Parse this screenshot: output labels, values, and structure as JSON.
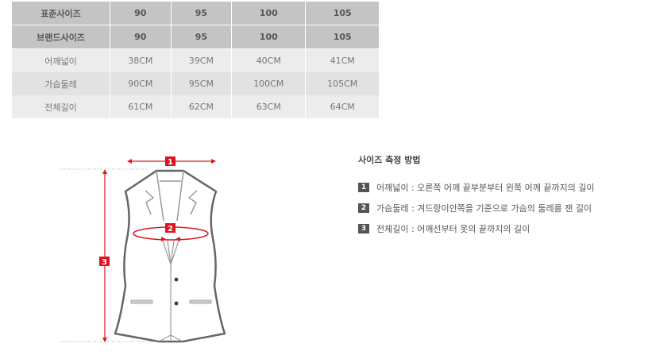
{
  "size_table": {
    "header_rows": [
      {
        "label": "표준사이즈",
        "values": [
          "90",
          "95",
          "100",
          "105"
        ]
      },
      {
        "label": "브랜드사이즈",
        "values": [
          "90",
          "95",
          "100",
          "105"
        ]
      }
    ],
    "rows": [
      {
        "label": "어깨넓이",
        "values": [
          "38CM",
          "39CM",
          "40CM",
          "41CM"
        ]
      },
      {
        "label": "가슴둘레",
        "values": [
          "90CM",
          "95CM",
          "100CM",
          "105CM"
        ]
      },
      {
        "label": "전체길이",
        "values": [
          "61CM",
          "62CM",
          "63CM",
          "64CM"
        ]
      }
    ]
  },
  "diagram": {
    "markers": [
      "1",
      "2",
      "3"
    ],
    "accent_color": "#e0141e"
  },
  "howto": {
    "title": "사이즈 측정 방법",
    "steps": [
      {
        "num": "1",
        "text": "어깨넓이 : 오른쪽 어깨 끝부분부터 왼쪽 어깨 끝까지의 길이"
      },
      {
        "num": "2",
        "text": "가슴둘레 : 겨드랑이안쪽을 기준으로 가슴의 둘레를 잰 길이"
      },
      {
        "num": "3",
        "text": "전체길이 : 어깨선부터 옷의 끝까지의 길이"
      }
    ]
  }
}
